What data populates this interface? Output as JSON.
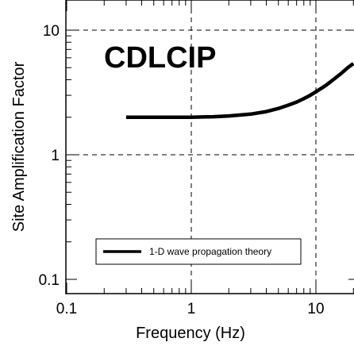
{
  "chart_data": {
    "type": "line",
    "title": "CDLCIP",
    "xlabel": "Frequency (Hz)",
    "ylabel": "Site Amplification Factor",
    "xscale": "log",
    "yscale": "log",
    "xlim": [
      0.1,
      20
    ],
    "ylim": [
      0.1,
      20
    ],
    "grid": "dashed at decades",
    "legend_position": "bottom-left",
    "x_tick_labels": [
      {
        "value": 0.1,
        "label": "0.1"
      },
      {
        "value": 1,
        "label": "1"
      },
      {
        "value": 10,
        "label": "10"
      }
    ],
    "y_tick_labels": [
      {
        "value": 0.1,
        "label": "0.1"
      },
      {
        "value": 1,
        "label": "1"
      },
      {
        "value": 10,
        "label": "10"
      }
    ],
    "series": [
      {
        "name": "1-D wave propagation theory",
        "color": "#000000",
        "x": [
          0.3,
          0.5,
          0.8,
          1.0,
          1.5,
          2.0,
          3.0,
          4.0,
          5.0,
          6.0,
          7.0,
          8.0,
          9.0,
          10.0,
          12.0,
          14.0,
          16.0,
          18.0,
          20.0
        ],
        "y": [
          2.0,
          2.0,
          2.0,
          2.0,
          2.02,
          2.05,
          2.12,
          2.22,
          2.35,
          2.5,
          2.65,
          2.82,
          3.0,
          3.2,
          3.6,
          4.05,
          4.5,
          5.0,
          5.4
        ]
      }
    ]
  }
}
